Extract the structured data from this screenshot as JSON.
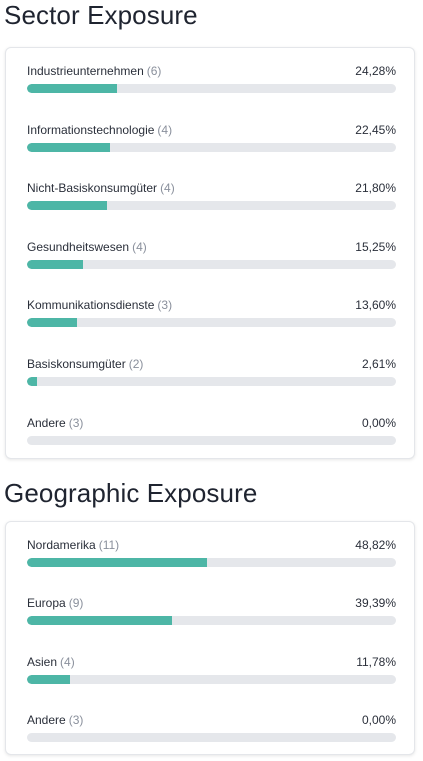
{
  "sector": {
    "title": "Sector Exposure",
    "items": [
      {
        "label": "Industrieunternehmen",
        "count": "(6)",
        "percent": "24,28%",
        "value": 24.28
      },
      {
        "label": "Informationstechnologie",
        "count": "(4)",
        "percent": "22,45%",
        "value": 22.45
      },
      {
        "label": "Nicht-Basiskonsumgüter",
        "count": "(4)",
        "percent": "21,80%",
        "value": 21.8
      },
      {
        "label": "Gesundheitswesen",
        "count": "(4)",
        "percent": "15,25%",
        "value": 15.25
      },
      {
        "label": "Kommunikationsdienste",
        "count": "(3)",
        "percent": "13,60%",
        "value": 13.6
      },
      {
        "label": "Basiskonsumgüter",
        "count": "(2)",
        "percent": "2,61%",
        "value": 2.61
      },
      {
        "label": "Andere",
        "count": "(3)",
        "percent": "0,00%",
        "value": 0
      }
    ]
  },
  "geographic": {
    "title": "Geographic Exposure",
    "items": [
      {
        "label": "Nordamerika",
        "count": "(11)",
        "percent": "48,82%",
        "value": 48.82
      },
      {
        "label": "Europa",
        "count": "(9)",
        "percent": "39,39%",
        "value": 39.39
      },
      {
        "label": "Asien",
        "count": "(4)",
        "percent": "11,78%",
        "value": 11.78
      },
      {
        "label": "Andere",
        "count": "(3)",
        "percent": "0,00%",
        "value": 0
      }
    ]
  },
  "colors": {
    "bar_fill": "#4db6a6",
    "bar_track": "#e5e7eb"
  }
}
